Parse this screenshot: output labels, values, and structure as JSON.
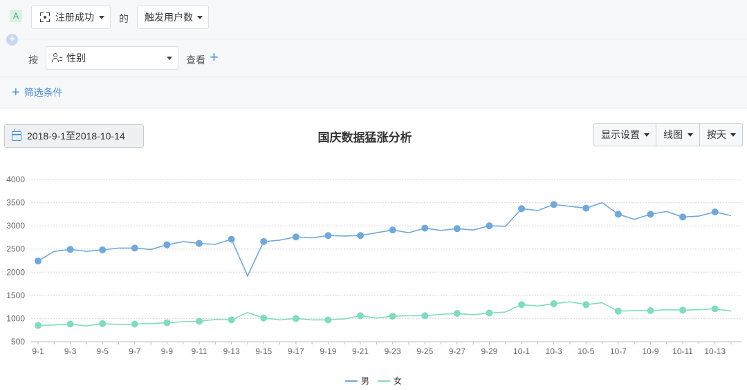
{
  "config": {
    "badge": "A",
    "event_label": "注册成功",
    "of_label": "的",
    "metric_label": "触发用户数",
    "by_label": "按",
    "group_label": "性别",
    "view_label": "查看",
    "filter_label": "筛选条件"
  },
  "date_range": "2018-9-1至2018-10-14",
  "controls": {
    "display_settings": "显示设置",
    "chart_type": "线图",
    "granularity": "按天"
  },
  "colors": {
    "male": "#6fa8dc",
    "female": "#7fdcc0"
  },
  "chart_data": {
    "type": "line",
    "title": "国庆数据猛涨分析",
    "ylim": [
      500,
      4000
    ],
    "yticks": [
      500,
      1000,
      1500,
      2000,
      2500,
      3000,
      3500,
      4000
    ],
    "x": [
      "9-1",
      "9-2",
      "9-3",
      "9-4",
      "9-5",
      "9-6",
      "9-7",
      "9-8",
      "9-9",
      "9-10",
      "9-11",
      "9-12",
      "9-13",
      "9-14",
      "9-15",
      "9-16",
      "9-17",
      "9-18",
      "9-19",
      "9-20",
      "9-21",
      "9-22",
      "9-23",
      "9-24",
      "9-25",
      "9-26",
      "9-27",
      "9-28",
      "9-29",
      "9-30",
      "10-1",
      "10-2",
      "10-3",
      "10-4",
      "10-5",
      "10-6",
      "10-7",
      "10-8",
      "10-9",
      "10-10",
      "10-11",
      "10-12",
      "10-13",
      "10-14"
    ],
    "xtick_labels": [
      "9-1",
      "9-3",
      "9-5",
      "9-7",
      "9-9",
      "9-11",
      "9-13",
      "9-15",
      "9-17",
      "9-19",
      "9-21",
      "9-23",
      "9-25",
      "9-27",
      "9-29",
      "10-1",
      "10-3",
      "10-5",
      "10-7",
      "10-9",
      "10-11",
      "10-13"
    ],
    "grid": true,
    "legend_position": "bottom-center",
    "series": [
      {
        "name": "男",
        "values": [
          2240,
          2450,
          2490,
          2450,
          2480,
          2520,
          2520,
          2490,
          2590,
          2660,
          2620,
          2600,
          2710,
          1920,
          2660,
          2690,
          2760,
          2740,
          2790,
          2780,
          2790,
          2850,
          2910,
          2850,
          2950,
          2900,
          2940,
          2910,
          3000,
          2990,
          3370,
          3330,
          3460,
          3420,
          3380,
          3500,
          3250,
          3140,
          3250,
          3310,
          3190,
          3210,
          3300,
          3220
        ]
      },
      {
        "name": "女",
        "values": [
          850,
          860,
          880,
          840,
          890,
          870,
          880,
          890,
          910,
          930,
          940,
          980,
          970,
          1130,
          1010,
          970,
          1000,
          970,
          970,
          990,
          1060,
          1010,
          1050,
          1060,
          1060,
          1090,
          1110,
          1080,
          1120,
          1140,
          1300,
          1270,
          1320,
          1360,
          1300,
          1340,
          1160,
          1170,
          1170,
          1190,
          1180,
          1190,
          1210,
          1160
        ]
      }
    ]
  }
}
